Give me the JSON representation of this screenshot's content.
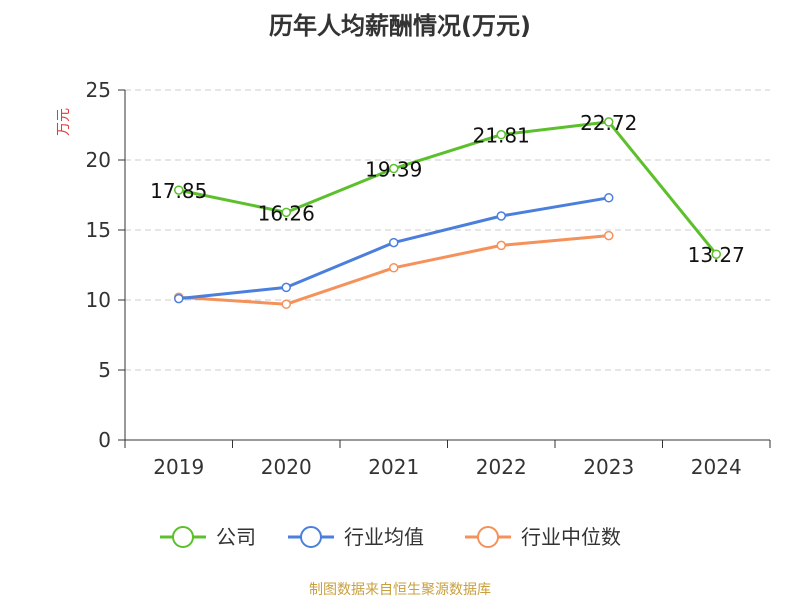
{
  "chart_data": {
    "type": "line",
    "title": "历年人均薪酬情况(万元)",
    "ylabel": "万元",
    "categories": [
      "2019",
      "2020",
      "2021",
      "2022",
      "2023",
      "2024"
    ],
    "ylim": [
      0,
      25
    ],
    "yticks": [
      0,
      5,
      10,
      15,
      20,
      25
    ],
    "grid": true,
    "legend_position": "bottom",
    "series": [
      {
        "name": "公司",
        "color": "#5cc02c",
        "values": [
          17.85,
          16.26,
          19.39,
          21.81,
          22.72,
          13.27
        ],
        "labels": [
          "17.85",
          "16.26",
          "19.39",
          "21.81",
          "22.72",
          "13.27"
        ]
      },
      {
        "name": "行业均值",
        "color": "#4a7fdc",
        "values": [
          10.1,
          10.9,
          14.1,
          16.0,
          17.3,
          null
        ]
      },
      {
        "name": "行业中位数",
        "color": "#f5915a",
        "values": [
          10.2,
          9.7,
          12.3,
          13.9,
          14.6,
          null
        ]
      }
    ]
  },
  "colors": {
    "ylabel": "#e03c3c",
    "source": "#c8a040",
    "axis": "#333333",
    "grid": "#cccccc"
  },
  "source_text": "制图数据来自恒生聚源数据库"
}
